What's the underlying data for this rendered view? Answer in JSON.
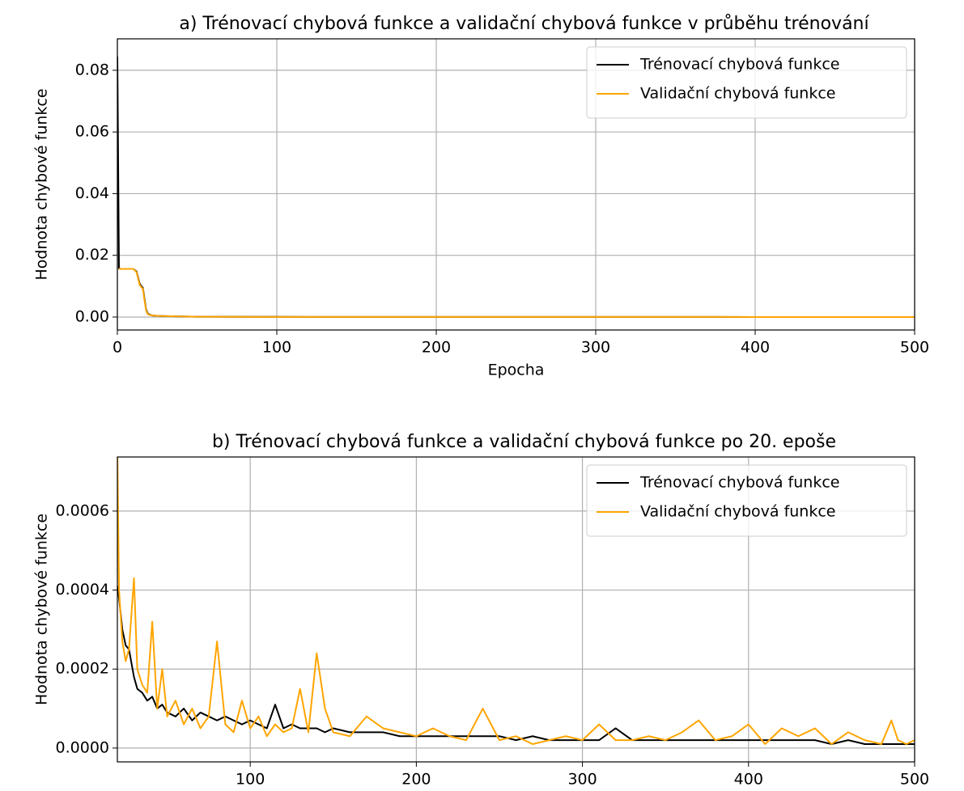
{
  "chart_data": [
    {
      "type": "line",
      "title": "a) Trénovací chybová funkce a validační chybová funkce v průběhu trénování",
      "xlabel": "Epocha",
      "ylabel": "Hodnota chybové funkce",
      "x": [
        0,
        1,
        2,
        5,
        8,
        10,
        12,
        14,
        15,
        16,
        17,
        18,
        19,
        20,
        22,
        25,
        30,
        40,
        50,
        100,
        200,
        300,
        400,
        500
      ],
      "series": [
        {
          "name": "Trénovací chybová funkce",
          "color": "#000000",
          "values": [
            0.0845,
            0.0158,
            0.0156,
            0.0156,
            0.0156,
            0.0156,
            0.0148,
            0.0108,
            0.01,
            0.0095,
            0.006,
            0.0025,
            0.0012,
            0.0008,
            0.0005,
            0.0004,
            0.0003,
            0.0002,
            0.0001,
            5e-05,
            2e-05,
            2e-05,
            1e-05,
            1e-05
          ]
        },
        {
          "name": "Validační chybová funkce",
          "color": "#ffa500",
          "values": [
            null,
            0.0157,
            0.0156,
            0.0156,
            0.0156,
            0.0156,
            0.0146,
            0.0104,
            0.0097,
            0.0092,
            0.0055,
            0.0022,
            0.001,
            0.0007,
            0.0005,
            0.0004,
            0.0003,
            0.0002,
            0.0001,
            4e-05,
            2e-05,
            2e-05,
            1e-05,
            1e-05
          ]
        }
      ],
      "xlim": [
        0,
        500
      ],
      "xticks": [
        0,
        100,
        200,
        300,
        400,
        500
      ],
      "ylim": [
        -0.0042,
        0.0902
      ],
      "yticks": [
        {
          "value": 0,
          "label": "0.00"
        },
        {
          "value": 0.02,
          "label": "0.02"
        },
        {
          "value": 0.04,
          "label": "0.04"
        },
        {
          "value": 0.06,
          "label": "0.06"
        },
        {
          "value": 0.08,
          "label": "0.08"
        }
      ],
      "grid": true,
      "legend": "upper right"
    },
    {
      "type": "line",
      "title": "b) Trénovací chybová funkce a validační chybová funkce po 20. epoše",
      "xlabel": "Epocha",
      "ylabel": "Hodnota chybové funkce",
      "x": [
        20,
        21,
        23,
        25,
        27,
        30,
        32,
        35,
        38,
        41,
        44,
        47,
        50,
        55,
        60,
        65,
        70,
        75,
        80,
        85,
        90,
        95,
        100,
        105,
        110,
        115,
        120,
        125,
        130,
        135,
        140,
        145,
        150,
        160,
        170,
        180,
        190,
        200,
        210,
        220,
        230,
        240,
        250,
        260,
        270,
        280,
        290,
        300,
        310,
        320,
        330,
        340,
        350,
        360,
        370,
        380,
        390,
        400,
        410,
        420,
        430,
        440,
        450,
        460,
        470,
        480,
        486,
        490,
        495,
        500
      ],
      "series": [
        {
          "name": "Trénovací chybová funkce",
          "color": "#000000",
          "values": [
            0.00041,
            0.00038,
            0.0003,
            0.00026,
            0.00025,
            0.00018,
            0.00015,
            0.00014,
            0.00012,
            0.00013,
            0.0001,
            0.00011,
            9e-05,
            8e-05,
            0.0001,
            7e-05,
            9e-05,
            8e-05,
            7e-05,
            8e-05,
            7e-05,
            6e-05,
            7e-05,
            6e-05,
            5e-05,
            0.00011,
            5e-05,
            6e-05,
            5e-05,
            5e-05,
            5e-05,
            4e-05,
            5e-05,
            4e-05,
            4e-05,
            4e-05,
            3e-05,
            3e-05,
            3e-05,
            3e-05,
            3e-05,
            3e-05,
            3e-05,
            2e-05,
            3e-05,
            2e-05,
            2e-05,
            2e-05,
            2e-05,
            5e-05,
            2e-05,
            2e-05,
            2e-05,
            2e-05,
            2e-05,
            2e-05,
            2e-05,
            2e-05,
            2e-05,
            2e-05,
            2e-05,
            2e-05,
            1e-05,
            2e-05,
            1e-05,
            1e-05,
            1e-05,
            1e-05,
            1e-05,
            1e-05
          ]
        },
        {
          "name": "Validační chybová funkce",
          "color": "#ffa500",
          "values": [
            0.00075,
            0.0004,
            0.00027,
            0.00022,
            0.00025,
            0.00043,
            0.0002,
            0.00016,
            0.00014,
            0.00032,
            0.0001,
            0.0002,
            8e-05,
            0.00012,
            6e-05,
            0.0001,
            5e-05,
            8e-05,
            0.00027,
            6e-05,
            4e-05,
            0.00012,
            5e-05,
            8e-05,
            3e-05,
            6e-05,
            4e-05,
            5e-05,
            0.00015,
            4e-05,
            0.00024,
            0.0001,
            4e-05,
            3e-05,
            8e-05,
            5e-05,
            4e-05,
            3e-05,
            5e-05,
            3e-05,
            2e-05,
            0.0001,
            2e-05,
            3e-05,
            1e-05,
            2e-05,
            3e-05,
            2e-05,
            6e-05,
            2e-05,
            2e-05,
            3e-05,
            2e-05,
            4e-05,
            7e-05,
            2e-05,
            3e-05,
            6e-05,
            1e-05,
            5e-05,
            3e-05,
            5e-05,
            1e-05,
            4e-05,
            2e-05,
            1e-05,
            7e-05,
            2e-05,
            1e-05,
            2e-05
          ]
        }
      ],
      "xlim": [
        20,
        500
      ],
      "xticks": [
        100,
        200,
        300,
        400,
        500
      ],
      "ylim": [
        -3.5e-05,
        0.000737
      ],
      "yticks": [
        {
          "value": 0,
          "label": "0.0000"
        },
        {
          "value": 0.0002,
          "label": "0.0002"
        },
        {
          "value": 0.0004,
          "label": "0.0004"
        },
        {
          "value": 0.0006,
          "label": "0.0006"
        }
      ],
      "grid": true,
      "legend": "upper right"
    }
  ]
}
